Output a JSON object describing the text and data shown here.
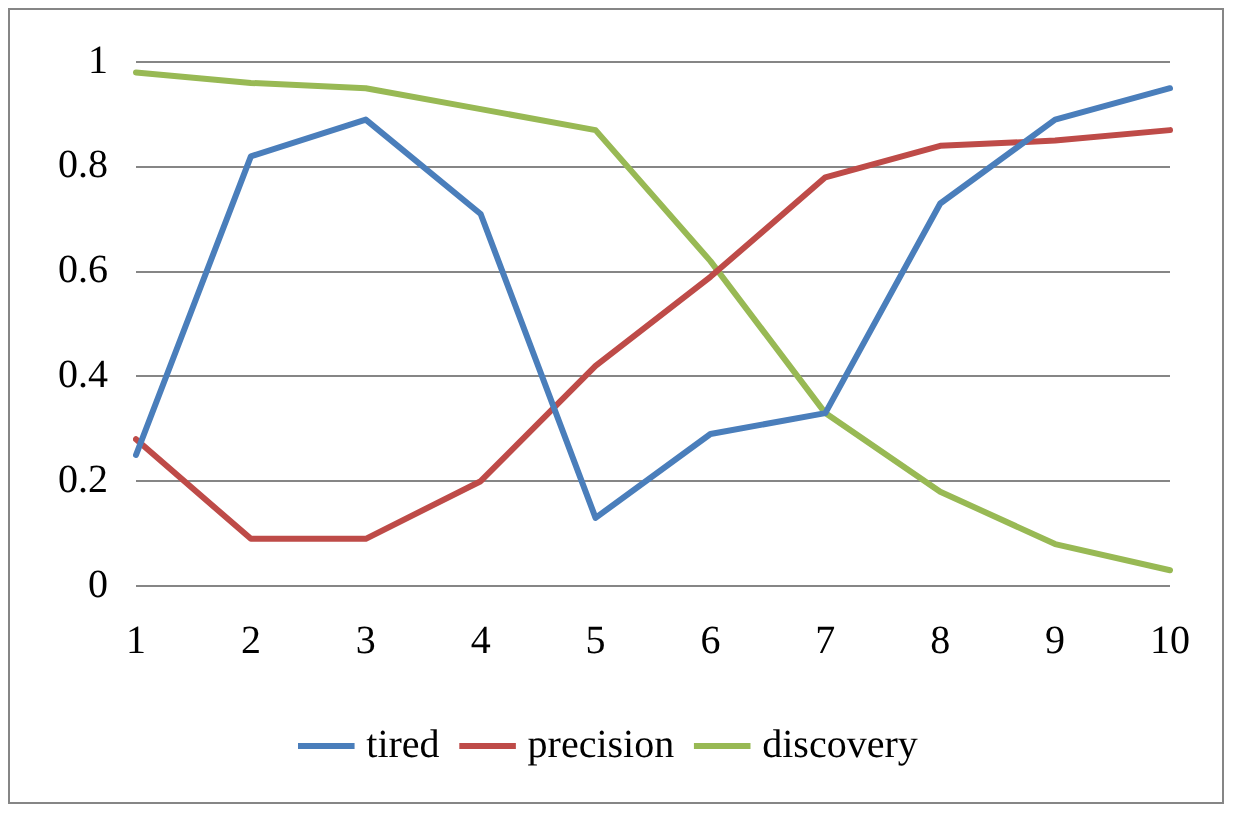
{
  "chart_data": {
    "type": "line",
    "categories": [
      "1",
      "2",
      "3",
      "4",
      "5",
      "6",
      "7",
      "8",
      "9",
      "10"
    ],
    "series": [
      {
        "name": "tired",
        "color": "#4a7ebb",
        "values": [
          0.25,
          0.82,
          0.89,
          0.71,
          0.13,
          0.29,
          0.33,
          0.73,
          0.89,
          0.95
        ]
      },
      {
        "name": "precision",
        "color": "#be4b48",
        "values": [
          0.28,
          0.09,
          0.09,
          0.2,
          0.42,
          0.59,
          0.78,
          0.84,
          0.85,
          0.87
        ]
      },
      {
        "name": "discovery",
        "color": "#98b954",
        "values": [
          0.98,
          0.96,
          0.95,
          0.91,
          0.87,
          0.62,
          0.33,
          0.18,
          0.08,
          0.03
        ]
      }
    ],
    "ylim": [
      0,
      1
    ],
    "yticks": [
      0,
      0.2,
      0.4,
      0.6,
      0.8,
      1
    ],
    "grid": "y",
    "legend": "bottom",
    "marker": "none",
    "line_style": "solid"
  }
}
